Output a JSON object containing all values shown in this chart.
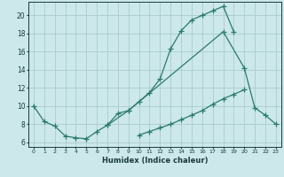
{
  "xlabel": "Humidex (Indice chaleur)",
  "bg_color": "#cce8ea",
  "grid_color": "#aacccc",
  "line_color": "#2a7a6a",
  "xlim": [
    -0.5,
    23.5
  ],
  "ylim": [
    5.5,
    21.5
  ],
  "yticks": [
    6,
    8,
    10,
    12,
    14,
    16,
    18,
    20
  ],
  "xticks": [
    0,
    1,
    2,
    3,
    4,
    5,
    6,
    7,
    8,
    9,
    10,
    11,
    12,
    13,
    14,
    15,
    16,
    17,
    18,
    19,
    20,
    21,
    22,
    23
  ],
  "line1_x": [
    0,
    1,
    2,
    3,
    4,
    5,
    6,
    7,
    8,
    9,
    10,
    11,
    12,
    13,
    14,
    15,
    16,
    17,
    18,
    19
  ],
  "line1_y": [
    10.0,
    8.3,
    7.8,
    6.7,
    6.5,
    6.4,
    7.2,
    7.9,
    9.2,
    9.5,
    10.5,
    11.5,
    13.0,
    16.3,
    18.3,
    19.5,
    20.0,
    20.5,
    21.0,
    18.2
  ],
  "line2_x": [
    7,
    9,
    18,
    20,
    21,
    22,
    23
  ],
  "line2_y": [
    7.9,
    9.5,
    18.2,
    14.2,
    9.8,
    9.0,
    8.0
  ],
  "line3_x": [
    0,
    1,
    2,
    3,
    4,
    5,
    6,
    7,
    8,
    9,
    10,
    11,
    12,
    13,
    14,
    15,
    16,
    17,
    18,
    19,
    20,
    21,
    22,
    23
  ],
  "line3_y": [
    null,
    null,
    null,
    null,
    null,
    null,
    null,
    null,
    null,
    null,
    6.8,
    7.2,
    7.6,
    8.0,
    8.5,
    9.0,
    9.5,
    10.2,
    10.8,
    11.3,
    11.8,
    null,
    null,
    null
  ]
}
